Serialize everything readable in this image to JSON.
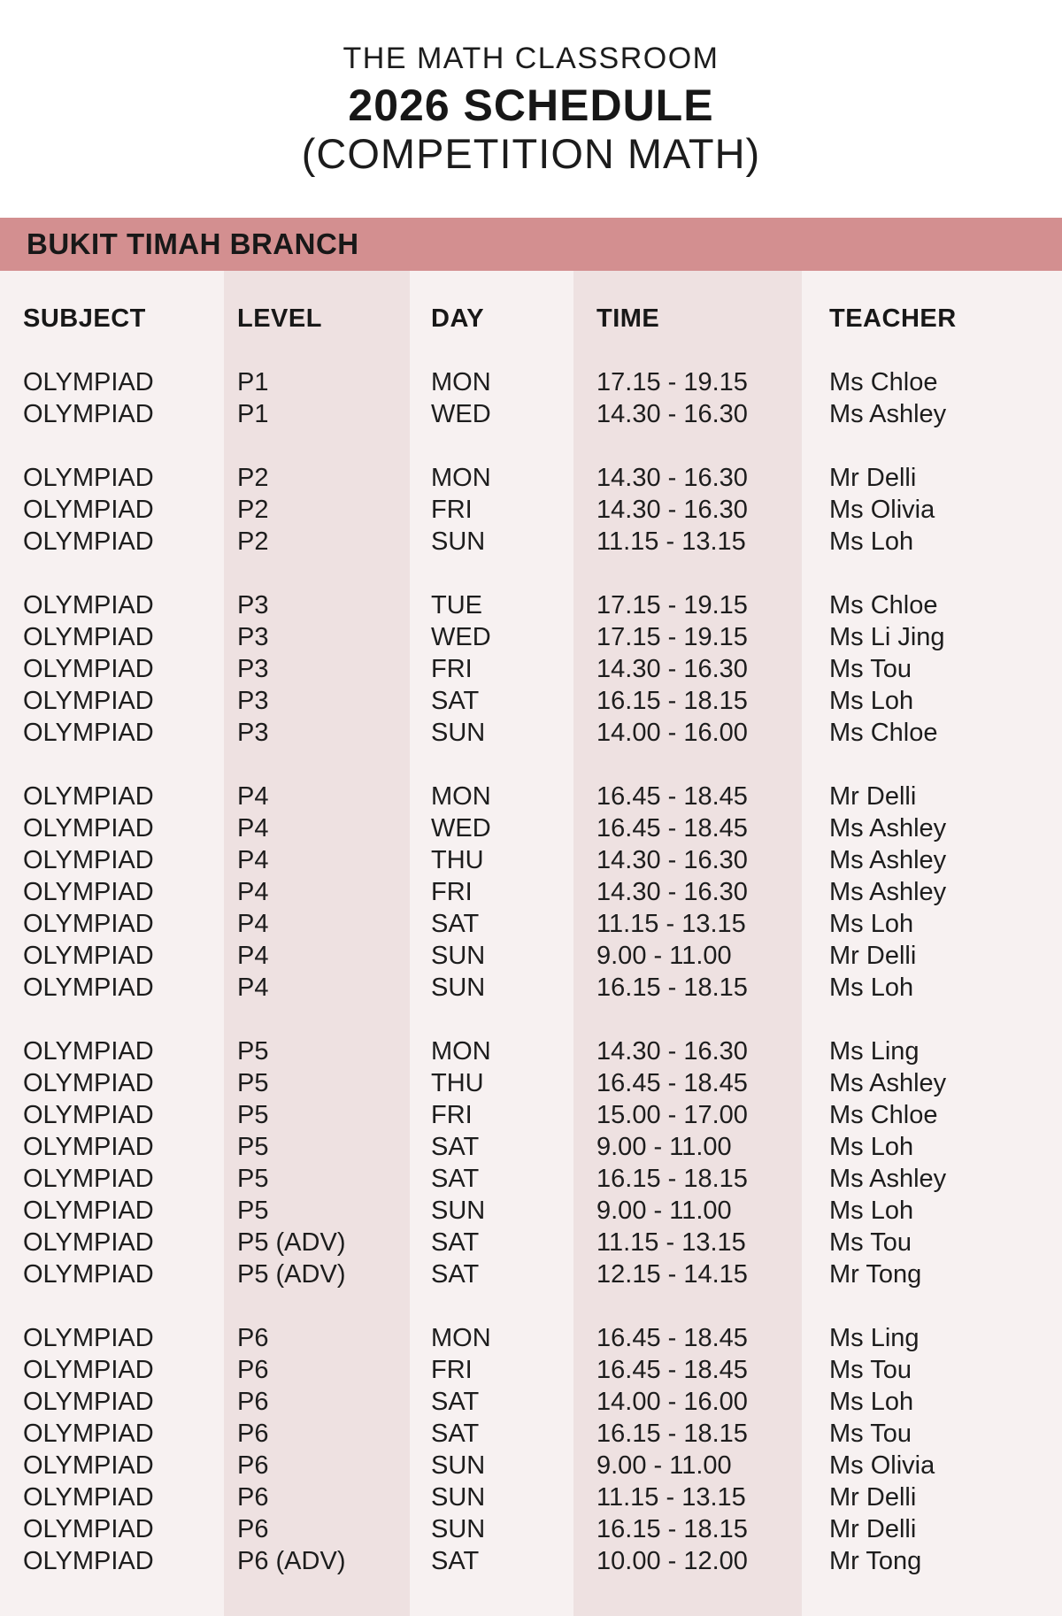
{
  "title": {
    "line1": "THE MATH CLASSROOM",
    "line2": "2026 SCHEDULE",
    "line3": "(COMPETITION MATH)"
  },
  "branch": {
    "name": "BUKIT TIMAH BRANCH"
  },
  "colors": {
    "banner": "#d38f90",
    "stripe_dark": "#eee1e1",
    "stripe_light": "#f7f1f1",
    "text": "#1d1d1d"
  },
  "table": {
    "columns": [
      "SUBJECT",
      "LEVEL",
      "DAY",
      "TIME",
      "TEACHER"
    ],
    "groups": [
      {
        "level_group": "P1",
        "rows": [
          [
            "OLYMPIAD",
            "P1",
            "MON",
            "17.15 - 19.15",
            "Ms Chloe"
          ],
          [
            "OLYMPIAD",
            "P1",
            "WED",
            "14.30 - 16.30",
            "Ms Ashley"
          ]
        ]
      },
      {
        "level_group": "P2",
        "rows": [
          [
            "OLYMPIAD",
            "P2",
            "MON",
            "14.30 - 16.30",
            "Mr Delli"
          ],
          [
            "OLYMPIAD",
            "P2",
            "FRI",
            "14.30 - 16.30",
            "Ms Olivia"
          ],
          [
            "OLYMPIAD",
            "P2",
            "SUN",
            "11.15 - 13.15",
            "Ms Loh"
          ]
        ]
      },
      {
        "level_group": "P3",
        "rows": [
          [
            "OLYMPIAD",
            "P3",
            "TUE",
            "17.15 - 19.15",
            "Ms Chloe"
          ],
          [
            "OLYMPIAD",
            "P3",
            "WED",
            "17.15 - 19.15",
            "Ms Li Jing"
          ],
          [
            "OLYMPIAD",
            "P3",
            "FRI",
            "14.30 - 16.30",
            "Ms Tou"
          ],
          [
            "OLYMPIAD",
            "P3",
            "SAT",
            "16.15 - 18.15",
            "Ms Loh"
          ],
          [
            "OLYMPIAD",
            "P3",
            "SUN",
            "14.00 - 16.00",
            "Ms Chloe"
          ]
        ]
      },
      {
        "level_group": "P4",
        "rows": [
          [
            "OLYMPIAD",
            "P4",
            "MON",
            "16.45 - 18.45",
            "Mr Delli"
          ],
          [
            "OLYMPIAD",
            "P4",
            "WED",
            "16.45 - 18.45",
            "Ms Ashley"
          ],
          [
            "OLYMPIAD",
            "P4",
            "THU",
            "14.30 - 16.30",
            "Ms Ashley"
          ],
          [
            "OLYMPIAD",
            "P4",
            "FRI",
            "14.30 - 16.30",
            "Ms Ashley"
          ],
          [
            "OLYMPIAD",
            "P4",
            "SAT",
            "11.15 - 13.15",
            "Ms Loh"
          ],
          [
            "OLYMPIAD",
            "P4",
            "SUN",
            "9.00 - 11.00",
            "Mr Delli"
          ],
          [
            "OLYMPIAD",
            "P4",
            "SUN",
            "16.15 - 18.15",
            "Ms Loh"
          ]
        ]
      },
      {
        "level_group": "P5",
        "rows": [
          [
            "OLYMPIAD",
            "P5",
            "MON",
            "14.30 - 16.30",
            "Ms Ling"
          ],
          [
            "OLYMPIAD",
            "P5",
            "THU",
            "16.45 - 18.45",
            "Ms Ashley"
          ],
          [
            "OLYMPIAD",
            "P5",
            "FRI",
            "15.00 - 17.00",
            "Ms Chloe"
          ],
          [
            "OLYMPIAD",
            "P5",
            "SAT",
            "9.00 - 11.00",
            "Ms Loh"
          ],
          [
            "OLYMPIAD",
            "P5",
            "SAT",
            "16.15 - 18.15",
            "Ms Ashley"
          ],
          [
            "OLYMPIAD",
            "P5",
            "SUN",
            "9.00 - 11.00",
            "Ms Loh"
          ],
          [
            "OLYMPIAD",
            "P5 (ADV)",
            "SAT",
            "11.15 - 13.15",
            "Ms Tou"
          ],
          [
            "OLYMPIAD",
            "P5 (ADV)",
            "SAT",
            "12.15 - 14.15",
            "Mr Tong"
          ]
        ]
      },
      {
        "level_group": "P6",
        "rows": [
          [
            "OLYMPIAD",
            "P6",
            "MON",
            "16.45 - 18.45",
            "Ms Ling"
          ],
          [
            "OLYMPIAD",
            "P6",
            "FRI",
            "16.45 - 18.45",
            "Ms Tou"
          ],
          [
            "OLYMPIAD",
            "P6",
            "SAT",
            "14.00 - 16.00",
            "Ms Loh"
          ],
          [
            "OLYMPIAD",
            "P6",
            "SAT",
            "16.15 - 18.15",
            "Ms Tou"
          ],
          [
            "OLYMPIAD",
            "P6",
            "SUN",
            "9.00 - 11.00",
            "Ms Olivia"
          ],
          [
            "OLYMPIAD",
            "P6",
            "SUN",
            "11.15 - 13.15",
            "Mr Delli"
          ],
          [
            "OLYMPIAD",
            "P6",
            "SUN",
            "16.15 - 18.15",
            "Mr Delli"
          ],
          [
            "OLYMPIAD",
            "P6 (ADV)",
            "SAT",
            "10.00 - 12.00",
            "Mr Tong"
          ]
        ]
      }
    ]
  }
}
